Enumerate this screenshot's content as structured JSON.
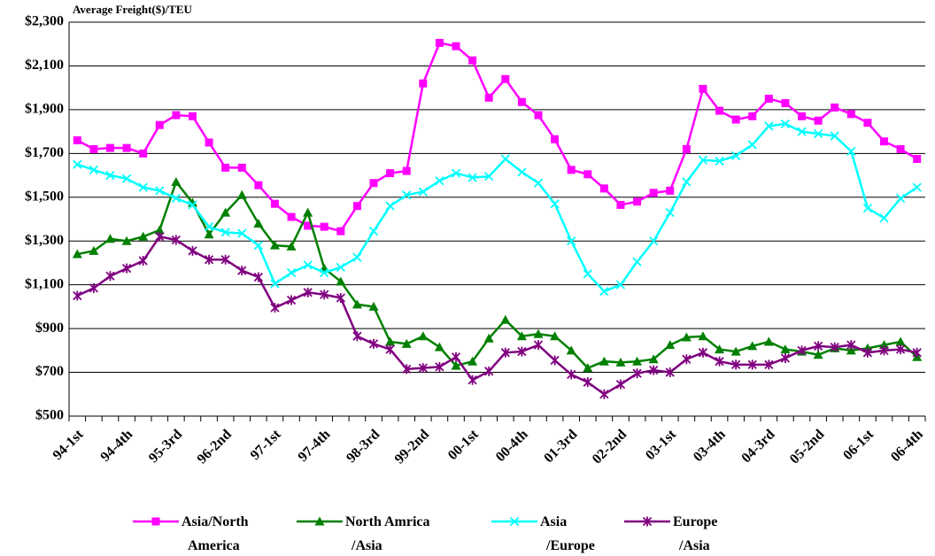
{
  "chart_data": {
    "type": "line",
    "title": "Average Freight($)/TEU",
    "categories": [
      "94-1st",
      null,
      null,
      "94-4th",
      null,
      null,
      "95-3rd",
      null,
      null,
      "96-2nd",
      null,
      null,
      "97-1st",
      null,
      null,
      "97-4th",
      null,
      null,
      "98-3rd",
      null,
      null,
      "99-2nd",
      null,
      null,
      "00-1st",
      null,
      null,
      "00-4th",
      null,
      null,
      "01-3rd",
      null,
      null,
      "02-2nd",
      null,
      null,
      "03-1st",
      null,
      null,
      "03-4th",
      null,
      null,
      "04-3rd",
      null,
      null,
      "05-2nd",
      null,
      null,
      "06-1st",
      null,
      null,
      "06-4th"
    ],
    "ylim": [
      500,
      2300
    ],
    "yticks": [
      {
        "value": 500,
        "label": "$500"
      },
      {
        "value": 700,
        "label": "$700"
      },
      {
        "value": 900,
        "label": "$900"
      },
      {
        "value": 1100,
        "label": "$1,100"
      },
      {
        "value": 1300,
        "label": "$1,300"
      },
      {
        "value": 1500,
        "label": "$1,500"
      },
      {
        "value": 1700,
        "label": "$1,700"
      },
      {
        "value": 1900,
        "label": "$1,900"
      },
      {
        "value": 2100,
        "label": "$2,100"
      },
      {
        "value": 2300,
        "label": "$2,300"
      }
    ],
    "grid": true,
    "series": [
      {
        "name": "Asia/North America",
        "color": "#ff00ff",
        "marker": "square",
        "values": [
          1760,
          1720,
          1725,
          1725,
          1700,
          1830,
          1875,
          1870,
          1750,
          1635,
          1635,
          1555,
          1470,
          1410,
          1370,
          1365,
          1345,
          1460,
          1565,
          1610,
          1620,
          2020,
          2205,
          2190,
          2125,
          1955,
          2040,
          1935,
          1875,
          1765,
          1625,
          1605,
          1540,
          1465,
          1480,
          1520,
          1530,
          1720,
          1995,
          1895,
          1855,
          1870,
          1950,
          1930,
          1870,
          1850,
          1910,
          1880,
          1840,
          1755,
          1720,
          1675
        ]
      },
      {
        "name": "North Amrica /Asia",
        "color": "#008000",
        "marker": "triangle",
        "values": [
          1240,
          1255,
          1310,
          1300,
          1320,
          1350,
          1570,
          1475,
          1330,
          1430,
          1510,
          1380,
          1280,
          1275,
          1430,
          1175,
          1115,
          1010,
          1000,
          840,
          830,
          865,
          815,
          730,
          750,
          855,
          940,
          865,
          875,
          865,
          800,
          720,
          750,
          745,
          750,
          760,
          825,
          860,
          865,
          805,
          795,
          820,
          840,
          805,
          795,
          780,
          810,
          800,
          810,
          825,
          840,
          770
        ]
      },
      {
        "name": "Asia /Europe",
        "color": "#00ffff",
        "marker": "x",
        "values": [
          1650,
          1625,
          1600,
          1585,
          1545,
          1530,
          1495,
          1465,
          1365,
          1340,
          1335,
          1280,
          1105,
          1155,
          1190,
          1155,
          1180,
          1225,
          1345,
          1460,
          1510,
          1525,
          1575,
          1610,
          1590,
          1595,
          1675,
          1615,
          1565,
          1470,
          1300,
          1150,
          1070,
          1100,
          1205,
          1300,
          1430,
          1570,
          1670,
          1665,
          1690,
          1740,
          1825,
          1835,
          1800,
          1790,
          1780,
          1710,
          1450,
          1405,
          1495,
          1545
        ]
      },
      {
        "name": "Europe /Asia",
        "color": "#800080",
        "marker": "star",
        "values": [
          1050,
          1085,
          1140,
          1175,
          1210,
          1320,
          1305,
          1255,
          1215,
          1215,
          1165,
          1135,
          995,
          1030,
          1065,
          1055,
          1040,
          865,
          830,
          805,
          715,
          720,
          725,
          770,
          665,
          705,
          790,
          795,
          825,
          755,
          690,
          655,
          600,
          645,
          695,
          710,
          700,
          760,
          790,
          750,
          735,
          735,
          735,
          765,
          800,
          820,
          815,
          825,
          790,
          800,
          805,
          790
        ]
      }
    ]
  }
}
